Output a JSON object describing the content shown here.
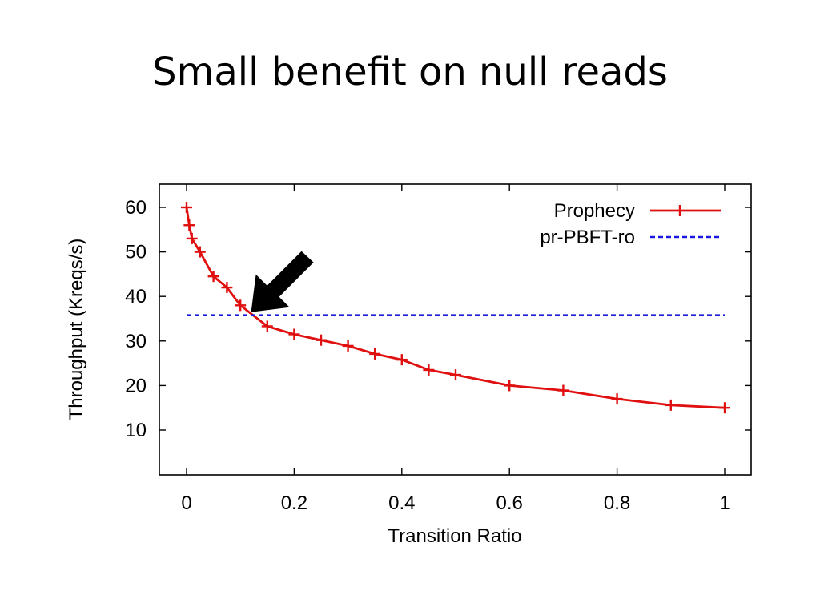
{
  "slide": {
    "title": "Small benefit on null reads"
  },
  "chart_data": {
    "type": "line",
    "title": "",
    "xlabel": "Transition Ratio",
    "ylabel": "Throughput (Kreqs/s)",
    "xlim": [
      -0.05,
      1.05
    ],
    "ylim": [
      0,
      65
    ],
    "xticks": [
      0,
      0.2,
      0.4,
      0.6,
      0.8,
      1
    ],
    "xtick_labels": [
      "0",
      "0.2",
      "0.4",
      "0.6",
      "0.8",
      "1"
    ],
    "yticks": [
      10,
      20,
      30,
      40,
      50,
      60
    ],
    "ytick_labels": [
      "10",
      "20",
      "30",
      "40",
      "50",
      "60"
    ],
    "grid": false,
    "legend": "top-right",
    "series": [
      {
        "name": "Prophecy",
        "color": "#e01010",
        "style": "solid-with-plus-markers",
        "x": [
          0,
          0.005,
          0.01,
          0.025,
          0.05,
          0.075,
          0.1,
          0.15,
          0.2,
          0.25,
          0.3,
          0.35,
          0.4,
          0.45,
          0.5,
          0.6,
          0.7,
          0.8,
          0.9,
          1.0
        ],
        "y": [
          60,
          56,
          53,
          50,
          44.5,
          42,
          38,
          33.3,
          31.5,
          30.2,
          28.9,
          27.1,
          25.8,
          23.5,
          22.4,
          20,
          18.9,
          17,
          15.6,
          15
        ]
      },
      {
        "name": "pr-PBFT-ro",
        "color": "#1a1ae0",
        "style": "dashed",
        "x": [
          0,
          1.0
        ],
        "y": [
          35.8,
          35.8
        ]
      }
    ],
    "annotations": [
      {
        "type": "arrow",
        "color": "#000000",
        "points_to": {
          "x": 0.12,
          "y": 36.5
        }
      }
    ]
  }
}
